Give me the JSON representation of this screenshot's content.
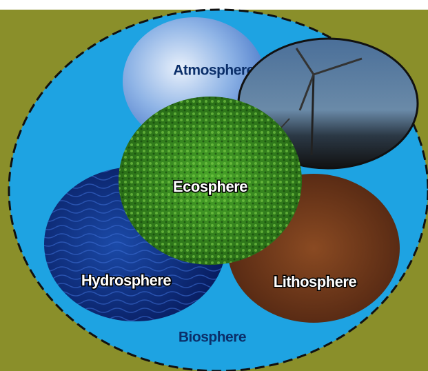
{
  "labels": {
    "atmosphere": "Atmosphere",
    "ecosphere": "Ecosphere",
    "hydrosphere": "Hydrosphere",
    "lithosphere": "Lithosphere",
    "biosphere": "Biosphere"
  }
}
